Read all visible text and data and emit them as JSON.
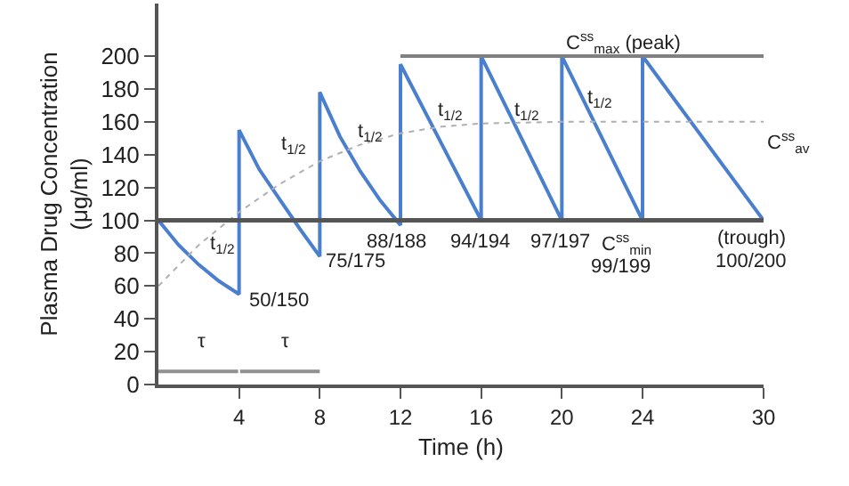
{
  "chart_data": {
    "type": "line",
    "xlabel": "Time (h)",
    "ylabel": "Plasma Drug Concentration\n(μg/ml)",
    "xlim": [
      0,
      30
    ],
    "xticks": [
      4,
      8,
      12,
      16,
      20,
      24,
      30
    ],
    "ylim": [
      0,
      232
    ],
    "yticks": [
      0,
      20,
      40,
      60,
      80,
      100,
      120,
      140,
      160,
      180,
      200
    ],
    "marker": "none",
    "series": [
      {
        "color": "#4a7fd0",
        "line_style": "solid",
        "x": [
          0,
          1,
          2,
          3,
          4,
          4,
          5,
          6,
          7,
          8,
          8,
          9,
          10,
          11,
          12,
          12,
          16,
          16,
          20,
          20,
          24,
          24,
          30
        ],
        "values": [
          100,
          85,
          73,
          63,
          55,
          155,
          131,
          113,
          95,
          78,
          178,
          151,
          130,
          112,
          97,
          195,
          100,
          200,
          100,
          200,
          100,
          200,
          100
        ]
      },
      {
        "color": "#b0b0b0",
        "line_style": "dotted",
        "x": [
          0,
          2,
          4,
          6,
          8,
          10,
          12,
          14,
          16,
          20,
          30
        ],
        "values": [
          60,
          85,
          105,
          122,
          136,
          146,
          153,
          157,
          159,
          160,
          160
        ]
      },
      {
        "color": "#808080",
        "line_style": "solid",
        "x": [
          12,
          30
        ],
        "values": [
          200,
          200
        ]
      },
      {
        "color": "#909090",
        "line_style": "solid",
        "x": [
          0,
          3.95,
          4,
          4.05,
          8
        ],
        "values": [
          8,
          8,
          null,
          8,
          8
        ]
      }
    ],
    "ref_lines": [
      {
        "axis": "y",
        "value": 100,
        "color": "#555555",
        "line_style": "solid"
      }
    ],
    "annotations": [
      "t$_{1/2}$",
      "t$_{1/2}$",
      "t$_{1/2}$",
      "t$_{1/2}$",
      "t$_{1/2}$",
      "t$_{1/2}$",
      "50/150",
      "75/175",
      "88/188",
      "94/194",
      "97/197",
      "C$^{ss}$$_{min}$",
      "99/199",
      "(trough)",
      "100/200",
      "C$^{ss}$$_{max}$ (peak)",
      "C$^{ss}$$_{av}$",
      "τ",
      "τ"
    ]
  }
}
